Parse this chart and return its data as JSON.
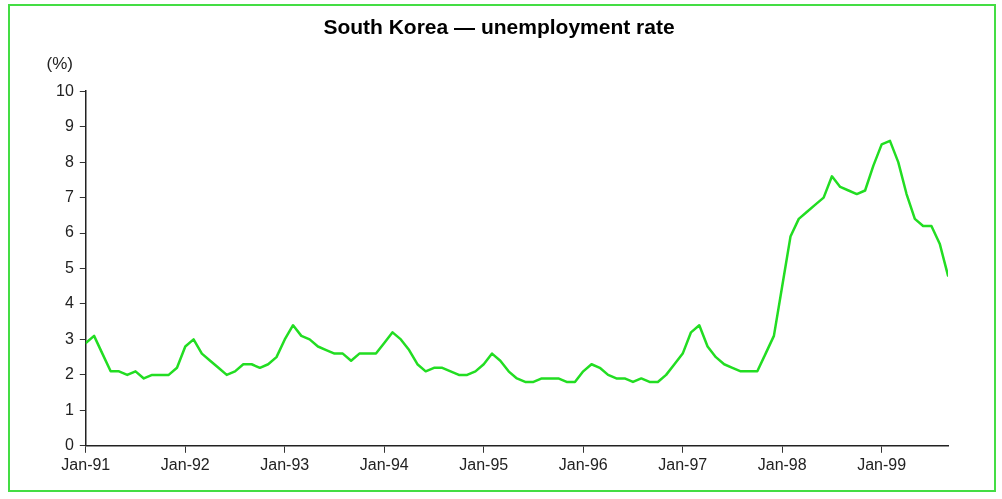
{
  "chart_data": {
    "type": "line",
    "title": "South Korea — unemployment rate",
    "ylabel": "(%)",
    "x": [
      "1991-01",
      "1991-02",
      "1991-03",
      "1991-04",
      "1991-05",
      "1991-06",
      "1991-07",
      "1991-08",
      "1991-09",
      "1991-10",
      "1991-11",
      "1991-12",
      "1992-01",
      "1992-02",
      "1992-03",
      "1992-04",
      "1992-05",
      "1992-06",
      "1992-07",
      "1992-08",
      "1992-09",
      "1992-10",
      "1992-11",
      "1992-12",
      "1993-01",
      "1993-02",
      "1993-03",
      "1993-04",
      "1993-05",
      "1993-06",
      "1993-07",
      "1993-08",
      "1993-09",
      "1993-10",
      "1993-11",
      "1993-12",
      "1994-01",
      "1994-02",
      "1994-03",
      "1994-04",
      "1994-05",
      "1994-06",
      "1994-07",
      "1994-08",
      "1994-09",
      "1994-10",
      "1994-11",
      "1994-12",
      "1995-01",
      "1995-02",
      "1995-03",
      "1995-04",
      "1995-05",
      "1995-06",
      "1995-07",
      "1995-08",
      "1995-09",
      "1995-10",
      "1995-11",
      "1995-12",
      "1996-01",
      "1996-02",
      "1996-03",
      "1996-04",
      "1996-05",
      "1996-06",
      "1996-07",
      "1996-08",
      "1996-09",
      "1996-10",
      "1996-11",
      "1996-12",
      "1997-01",
      "1997-02",
      "1997-03",
      "1997-04",
      "1997-05",
      "1997-06",
      "1997-07",
      "1997-08",
      "1997-09",
      "1997-10",
      "1997-11",
      "1997-12",
      "1998-01",
      "1998-02",
      "1998-03",
      "1998-04",
      "1998-05",
      "1998-06",
      "1998-07",
      "1998-08",
      "1998-09",
      "1998-10",
      "1998-11",
      "1998-12",
      "1999-01",
      "1999-02",
      "1999-03",
      "1999-04",
      "1999-05",
      "1999-06",
      "1999-07",
      "1999-08",
      "1999-09"
    ],
    "series": [
      {
        "color": "#22dd22",
        "values": [
          2.9,
          3.1,
          2.6,
          2.1,
          2.1,
          2.0,
          2.1,
          1.9,
          2.0,
          2.0,
          2.0,
          2.2,
          2.8,
          3.0,
          2.6,
          2.4,
          2.2,
          2.0,
          2.1,
          2.3,
          2.3,
          2.2,
          2.3,
          2.5,
          3.0,
          3.4,
          3.1,
          3.0,
          2.8,
          2.7,
          2.6,
          2.6,
          2.4,
          2.6,
          2.6,
          2.6,
          2.9,
          3.2,
          3.0,
          2.7,
          2.3,
          2.1,
          2.2,
          2.2,
          2.1,
          2.0,
          2.0,
          2.1,
          2.3,
          2.6,
          2.4,
          2.1,
          1.9,
          1.8,
          1.8,
          1.9,
          1.9,
          1.9,
          1.8,
          1.8,
          2.1,
          2.3,
          2.2,
          2.0,
          1.9,
          1.9,
          1.8,
          1.9,
          1.8,
          1.8,
          2.0,
          2.3,
          2.6,
          3.2,
          3.4,
          2.8,
          2.5,
          2.3,
          2.2,
          2.1,
          2.1,
          2.1,
          2.6,
          3.1,
          4.5,
          5.9,
          6.4,
          6.6,
          6.8,
          7.0,
          7.6,
          7.3,
          7.2,
          7.1,
          7.2,
          7.9,
          8.5,
          8.6,
          8.0,
          7.1,
          6.4,
          6.2,
          6.2,
          5.7,
          4.8
        ]
      }
    ],
    "xlim": [
      "1991-01",
      "1999-09"
    ],
    "xticks": [
      {
        "value": "1991-01",
        "label": "Jan-91"
      },
      {
        "value": "1992-01",
        "label": "Jan-92"
      },
      {
        "value": "1993-01",
        "label": "Jan-93"
      },
      {
        "value": "1994-01",
        "label": "Jan-94"
      },
      {
        "value": "1995-01",
        "label": "Jan-95"
      },
      {
        "value": "1996-01",
        "label": "Jan-96"
      },
      {
        "value": "1997-01",
        "label": "Jan-97"
      },
      {
        "value": "1998-01",
        "label": "Jan-98"
      },
      {
        "value": "1999-01",
        "label": "Jan-99"
      }
    ],
    "ylim": [
      0,
      10
    ],
    "yticks": [
      0,
      1,
      2,
      3,
      4,
      5,
      6,
      7,
      8,
      9,
      10
    ],
    "grid": false,
    "legend": false,
    "marker": "none",
    "line_style": "solid"
  }
}
